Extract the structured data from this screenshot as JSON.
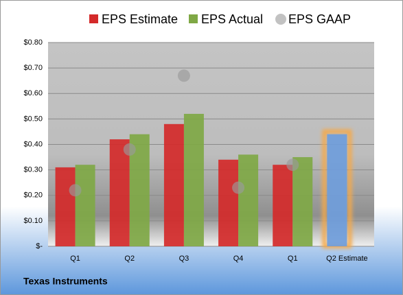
{
  "chart_data": {
    "type": "bar",
    "footer": "Texas Instruments",
    "categories": [
      "Q1",
      "Q2",
      "Q3",
      "Q4",
      "Q1",
      "Q2 Estimate"
    ],
    "series": [
      {
        "name": "EPS Estimate",
        "color": "#d42a2a",
        "values": [
          0.31,
          0.42,
          0.48,
          0.34,
          0.32,
          0.44
        ]
      },
      {
        "name": "EPS Actual",
        "color": "#7fa845",
        "values": [
          0.32,
          0.44,
          0.52,
          0.36,
          0.35,
          null
        ]
      },
      {
        "name": "EPS GAAP",
        "color": "#9a9a9a",
        "marker": "circle",
        "values": [
          0.22,
          0.38,
          0.67,
          0.23,
          0.32,
          null
        ]
      }
    ],
    "highlight": {
      "series": 0,
      "index": 5,
      "color": "#6f9ddb",
      "glow": "#f5a94a"
    },
    "ylim": [
      0,
      0.8
    ],
    "yticks": [
      {
        "value": 0,
        "label": "$-"
      },
      {
        "value": 0.1,
        "label": "$0.10"
      },
      {
        "value": 0.2,
        "label": "$0.20"
      },
      {
        "value": 0.3,
        "label": "$0.30"
      },
      {
        "value": 0.4,
        "label": "$0.40"
      },
      {
        "value": 0.5,
        "label": "$0.50"
      },
      {
        "value": 0.6,
        "label": "$0.60"
      },
      {
        "value": 0.7,
        "label": "$0.70"
      },
      {
        "value": 0.8,
        "label": "$0.80"
      }
    ],
    "grid": true,
    "legend": "top"
  }
}
